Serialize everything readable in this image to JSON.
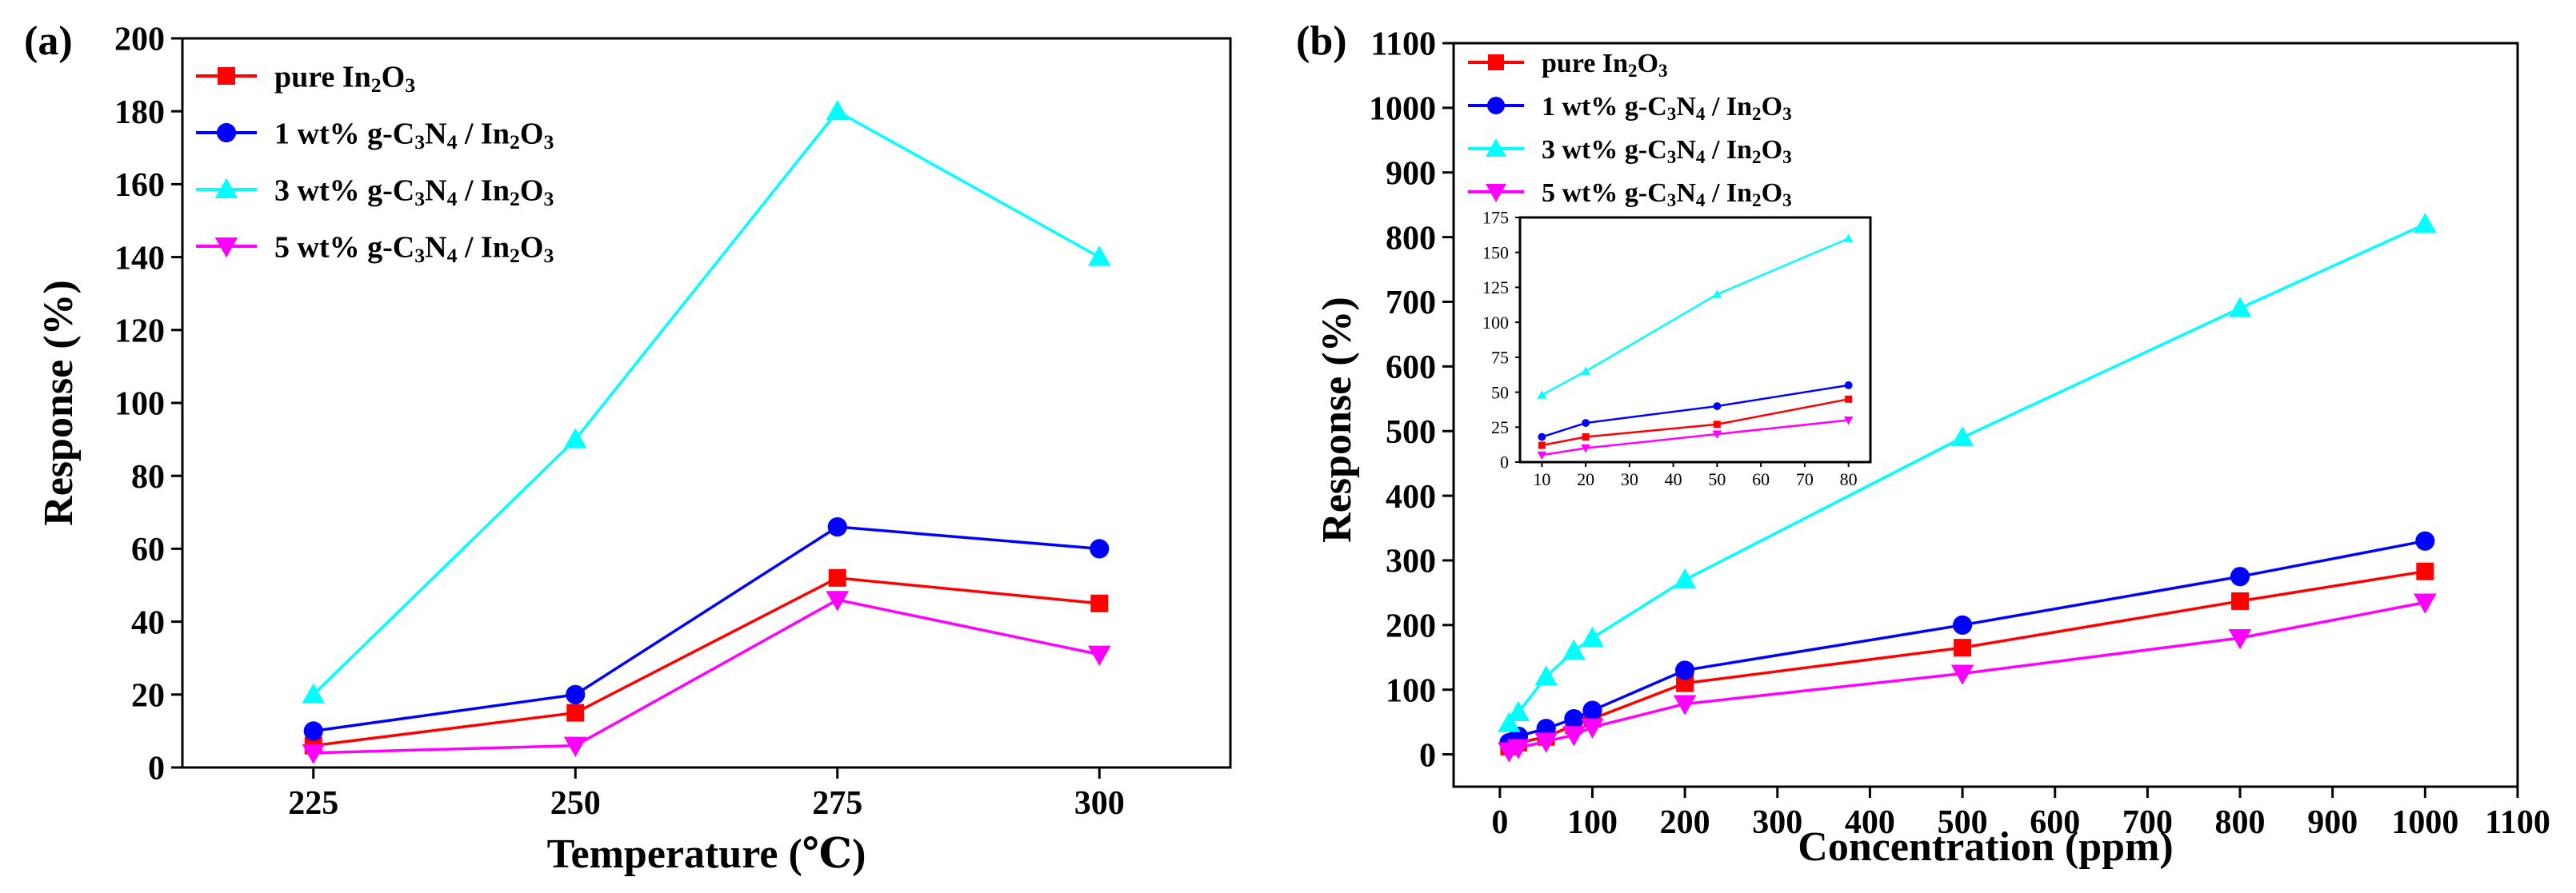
{
  "colors": {
    "pure": "#ff0000",
    "wt1": "#0000ff",
    "wt3": "#00ffff",
    "wt5": "#ff00ff"
  },
  "legend_labels": [
    {
      "pre": "pure In",
      "s1": "2",
      "mid": "O",
      "s2": "3",
      "post": ""
    },
    {
      "pre": "1 wt% g-C",
      "s1": "3",
      "mid": "N",
      "s2": "4",
      "post": " / In",
      "s3": "2",
      "mid2": "O",
      "s4": "3"
    },
    {
      "pre": "3 wt% g-C",
      "s1": "3",
      "mid": "N",
      "s2": "4",
      "post": " / In",
      "s3": "2",
      "mid2": "O",
      "s4": "3"
    },
    {
      "pre": "5 wt% g-C",
      "s1": "3",
      "mid": "N",
      "s2": "4",
      "post": " / In",
      "s3": "2",
      "mid2": "O",
      "s4": "3"
    }
  ],
  "chart_data": [
    {
      "panel": "(a)",
      "type": "line",
      "xlabel": "Temperature (℃)",
      "ylabel": "Response (%)",
      "x": [
        225,
        250,
        275,
        300
      ],
      "xticks": [
        225,
        250,
        275,
        300
      ],
      "xlim": [
        212.5,
        312.5
      ],
      "ylim": [
        0,
        200
      ],
      "yticks": [
        0,
        20,
        40,
        60,
        80,
        100,
        120,
        140,
        160,
        180,
        200
      ],
      "legend_position": "top-left",
      "series": [
        {
          "name": "pure In2O3",
          "marker": "square",
          "values": [
            6,
            15,
            52,
            45
          ]
        },
        {
          "name": "1 wt% g-C3N4 / In2O3",
          "marker": "circle",
          "values": [
            10,
            20,
            66,
            60
          ]
        },
        {
          "name": "3 wt% g-C3N4 / In2O3",
          "marker": "triangle-up",
          "values": [
            20,
            90,
            180,
            140
          ]
        },
        {
          "name": "5 wt% g-C3N4 / In2O3",
          "marker": "triangle-down",
          "values": [
            4,
            6,
            46,
            31
          ]
        }
      ]
    },
    {
      "panel": "(b)",
      "type": "line",
      "xlabel": "Concentration (ppm)",
      "ylabel": "Response (%)",
      "x": [
        10,
        20,
        50,
        80,
        100,
        200,
        500,
        800,
        1000
      ],
      "xticks": [
        0,
        100,
        200,
        300,
        400,
        500,
        600,
        700,
        800,
        900,
        1000,
        1100
      ],
      "xlim": [
        -50,
        1100
      ],
      "ylim": [
        -50,
        1100
      ],
      "yticks": [
        0,
        100,
        200,
        300,
        400,
        500,
        600,
        700,
        800,
        900,
        1000,
        1100
      ],
      "legend_position": "top-left",
      "series": [
        {
          "name": "pure In2O3",
          "marker": "square",
          "values": [
            12,
            18,
            27,
            45,
            55,
            110,
            165,
            237,
            283
          ]
        },
        {
          "name": "1 wt% g-C3N4 / In2O3",
          "marker": "circle",
          "values": [
            18,
            28,
            40,
            55,
            68,
            130,
            200,
            275,
            330
          ]
        },
        {
          "name": "3 wt% g-C3N4 / In2O3",
          "marker": "triangle-up",
          "values": [
            48,
            65,
            120,
            160,
            180,
            270,
            490,
            690,
            820
          ]
        },
        {
          "name": "5 wt% g-C3N4 / In2O3",
          "marker": "triangle-down",
          "values": [
            5,
            10,
            20,
            30,
            42,
            78,
            125,
            180,
            235
          ]
        }
      ],
      "inset": {
        "x": [
          10,
          20,
          50,
          80
        ],
        "xticks": [
          10,
          20,
          30,
          40,
          50,
          60,
          70,
          80
        ],
        "xlim": [
          5,
          85
        ],
        "ylim": [
          0,
          175
        ],
        "yticks": [
          0,
          25,
          50,
          75,
          100,
          125,
          150,
          175
        ],
        "series": [
          {
            "name": "pure In2O3",
            "marker": "square",
            "values": [
              12,
              18,
              27,
              45
            ]
          },
          {
            "name": "1 wt% g-C3N4 / In2O3",
            "marker": "circle",
            "values": [
              18,
              28,
              40,
              55
            ]
          },
          {
            "name": "3 wt% g-C3N4 / In2O3",
            "marker": "triangle-up",
            "values": [
              48,
              65,
              120,
              160
            ]
          },
          {
            "name": "5 wt% g-C3N4 / In2O3",
            "marker": "triangle-down",
            "values": [
              5,
              10,
              20,
              30
            ]
          }
        ]
      }
    }
  ]
}
